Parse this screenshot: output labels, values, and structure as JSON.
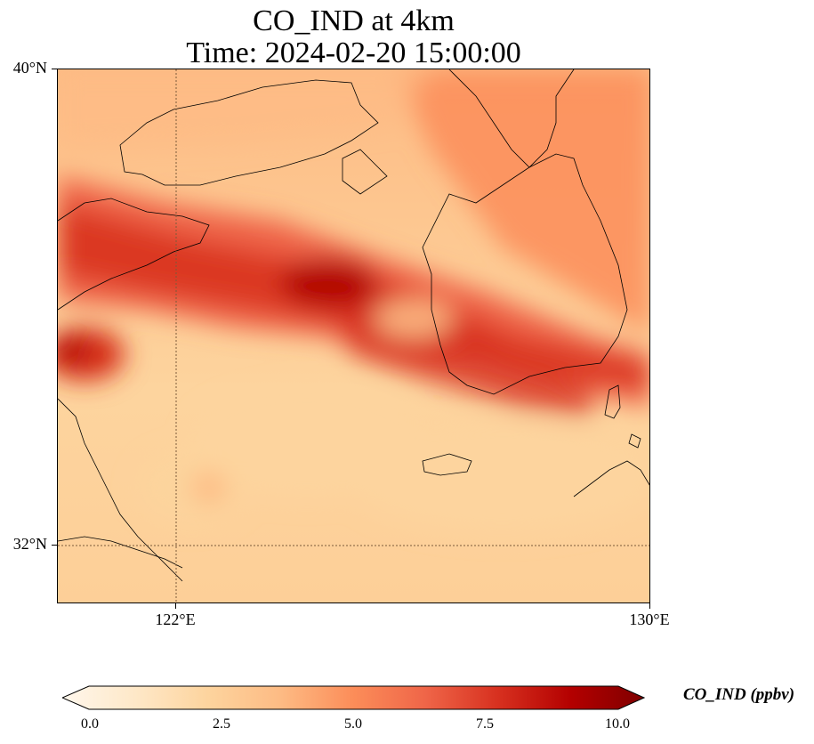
{
  "title": {
    "line1": "CO_IND at 4km",
    "line2": "Time: 2024-02-20 15:00:00"
  },
  "axes": {
    "y_ticks": [
      "40°N",
      "32°N"
    ],
    "x_ticks": [
      "122°E",
      "130°E"
    ]
  },
  "colorbar": {
    "label": "CO_IND (ppbv)",
    "ticks": [
      "0.0",
      "2.5",
      "5.0",
      "7.5",
      "10.0"
    ],
    "range": [
      0,
      10
    ],
    "colormap": "OrRd",
    "colors": [
      "#fff7ec",
      "#fee8c8",
      "#fdd49e",
      "#fdbb84",
      "#fc8d59",
      "#ef6548",
      "#d7301f",
      "#b30000",
      "#7f0000"
    ]
  },
  "map": {
    "lon_range": [
      120,
      130
    ],
    "lat_range": [
      31,
      40
    ],
    "gridlines": {
      "lon": 122,
      "lat": 32
    }
  }
}
